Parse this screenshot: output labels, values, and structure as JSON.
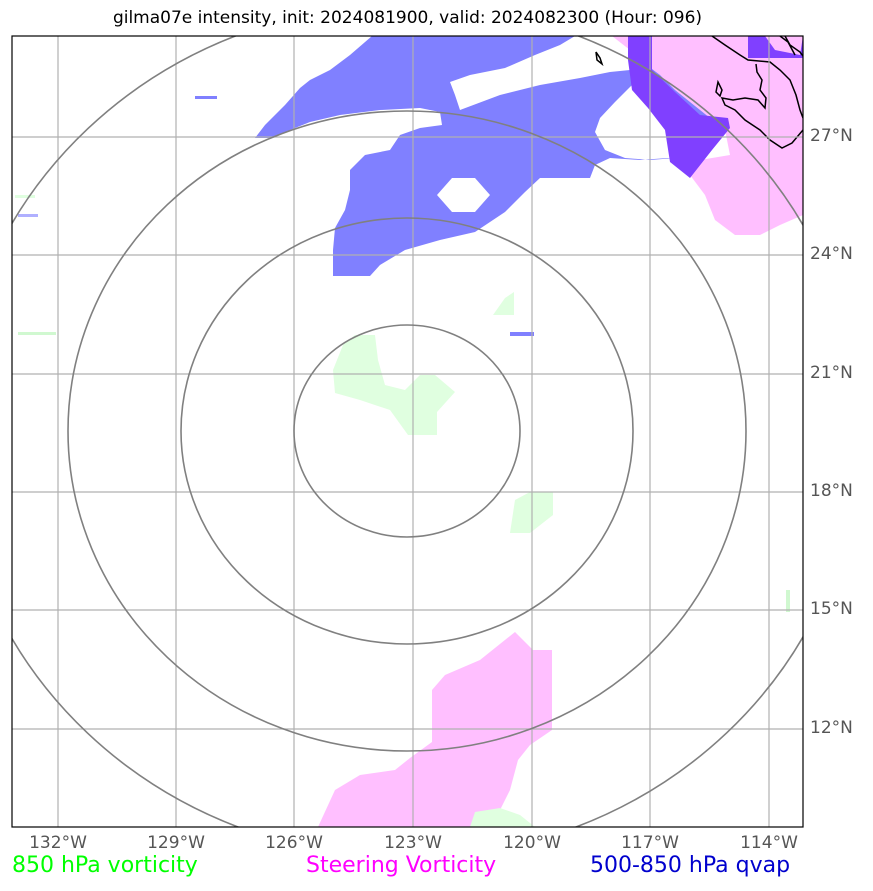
{
  "title": "gilma07e intensity, init: 2024081900, valid: 2024082300 (Hour: 096)",
  "lat_labels": [
    "27°N",
    "24°N",
    "21°N",
    "18°N",
    "15°N",
    "12°N"
  ],
  "lon_labels": [
    "132°W",
    "129°W",
    "126°W",
    "123°W",
    "120°W",
    "117°W",
    "114°W"
  ],
  "legend": {
    "left": {
      "label": "850 hPa vorticity",
      "color": "#00ff00"
    },
    "middle": {
      "label": "Steering Vorticity",
      "color": "#ff00ff"
    },
    "right": {
      "label": "500-850 hPa qvap",
      "color": "#0000cd"
    }
  },
  "colors": {
    "qvap_fill": "#8080ff",
    "steering_fill": "#ffbfff",
    "overlap_fill": "#8040ff",
    "vorticity850_fill": "#e0ffe0",
    "range_rings": "#808080",
    "gridlines": "#b0b0b0"
  }
}
